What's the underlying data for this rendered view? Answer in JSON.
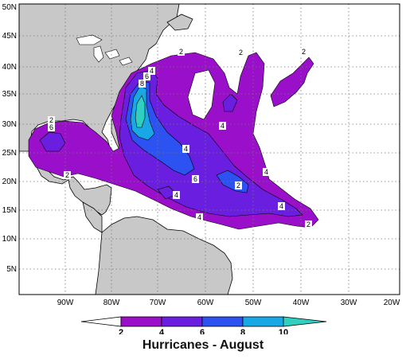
{
  "map": {
    "title": "Hurricanes - August",
    "lat_labels": [
      "50N",
      "45N",
      "40N",
      "35N",
      "30N",
      "25N",
      "20N",
      "15N",
      "10N",
      "5N"
    ],
    "lon_labels": [
      "90W",
      "80W",
      "70W",
      "60W",
      "50W",
      "40W",
      "30W",
      "20W"
    ],
    "contour_labels": [
      "2",
      "4",
      "6",
      "8",
      "2",
      "4",
      "2",
      "4",
      "6",
      "8",
      "2",
      "4",
      "4",
      "6",
      "4",
      "2",
      "2",
      "4",
      "2"
    ],
    "colors": {
      "ocean": "#ffffff",
      "land": "#c8c8c8",
      "level_2_4": "#9a0fc9",
      "level_4_6": "#6a1ee0",
      "level_6_8": "#2c52f2",
      "level_8_10": "#19a8e6",
      "level_10_plus": "#2fd0c0"
    }
  },
  "legend": {
    "ticks": [
      "2",
      "4",
      "6",
      "8",
      "10"
    ]
  }
}
